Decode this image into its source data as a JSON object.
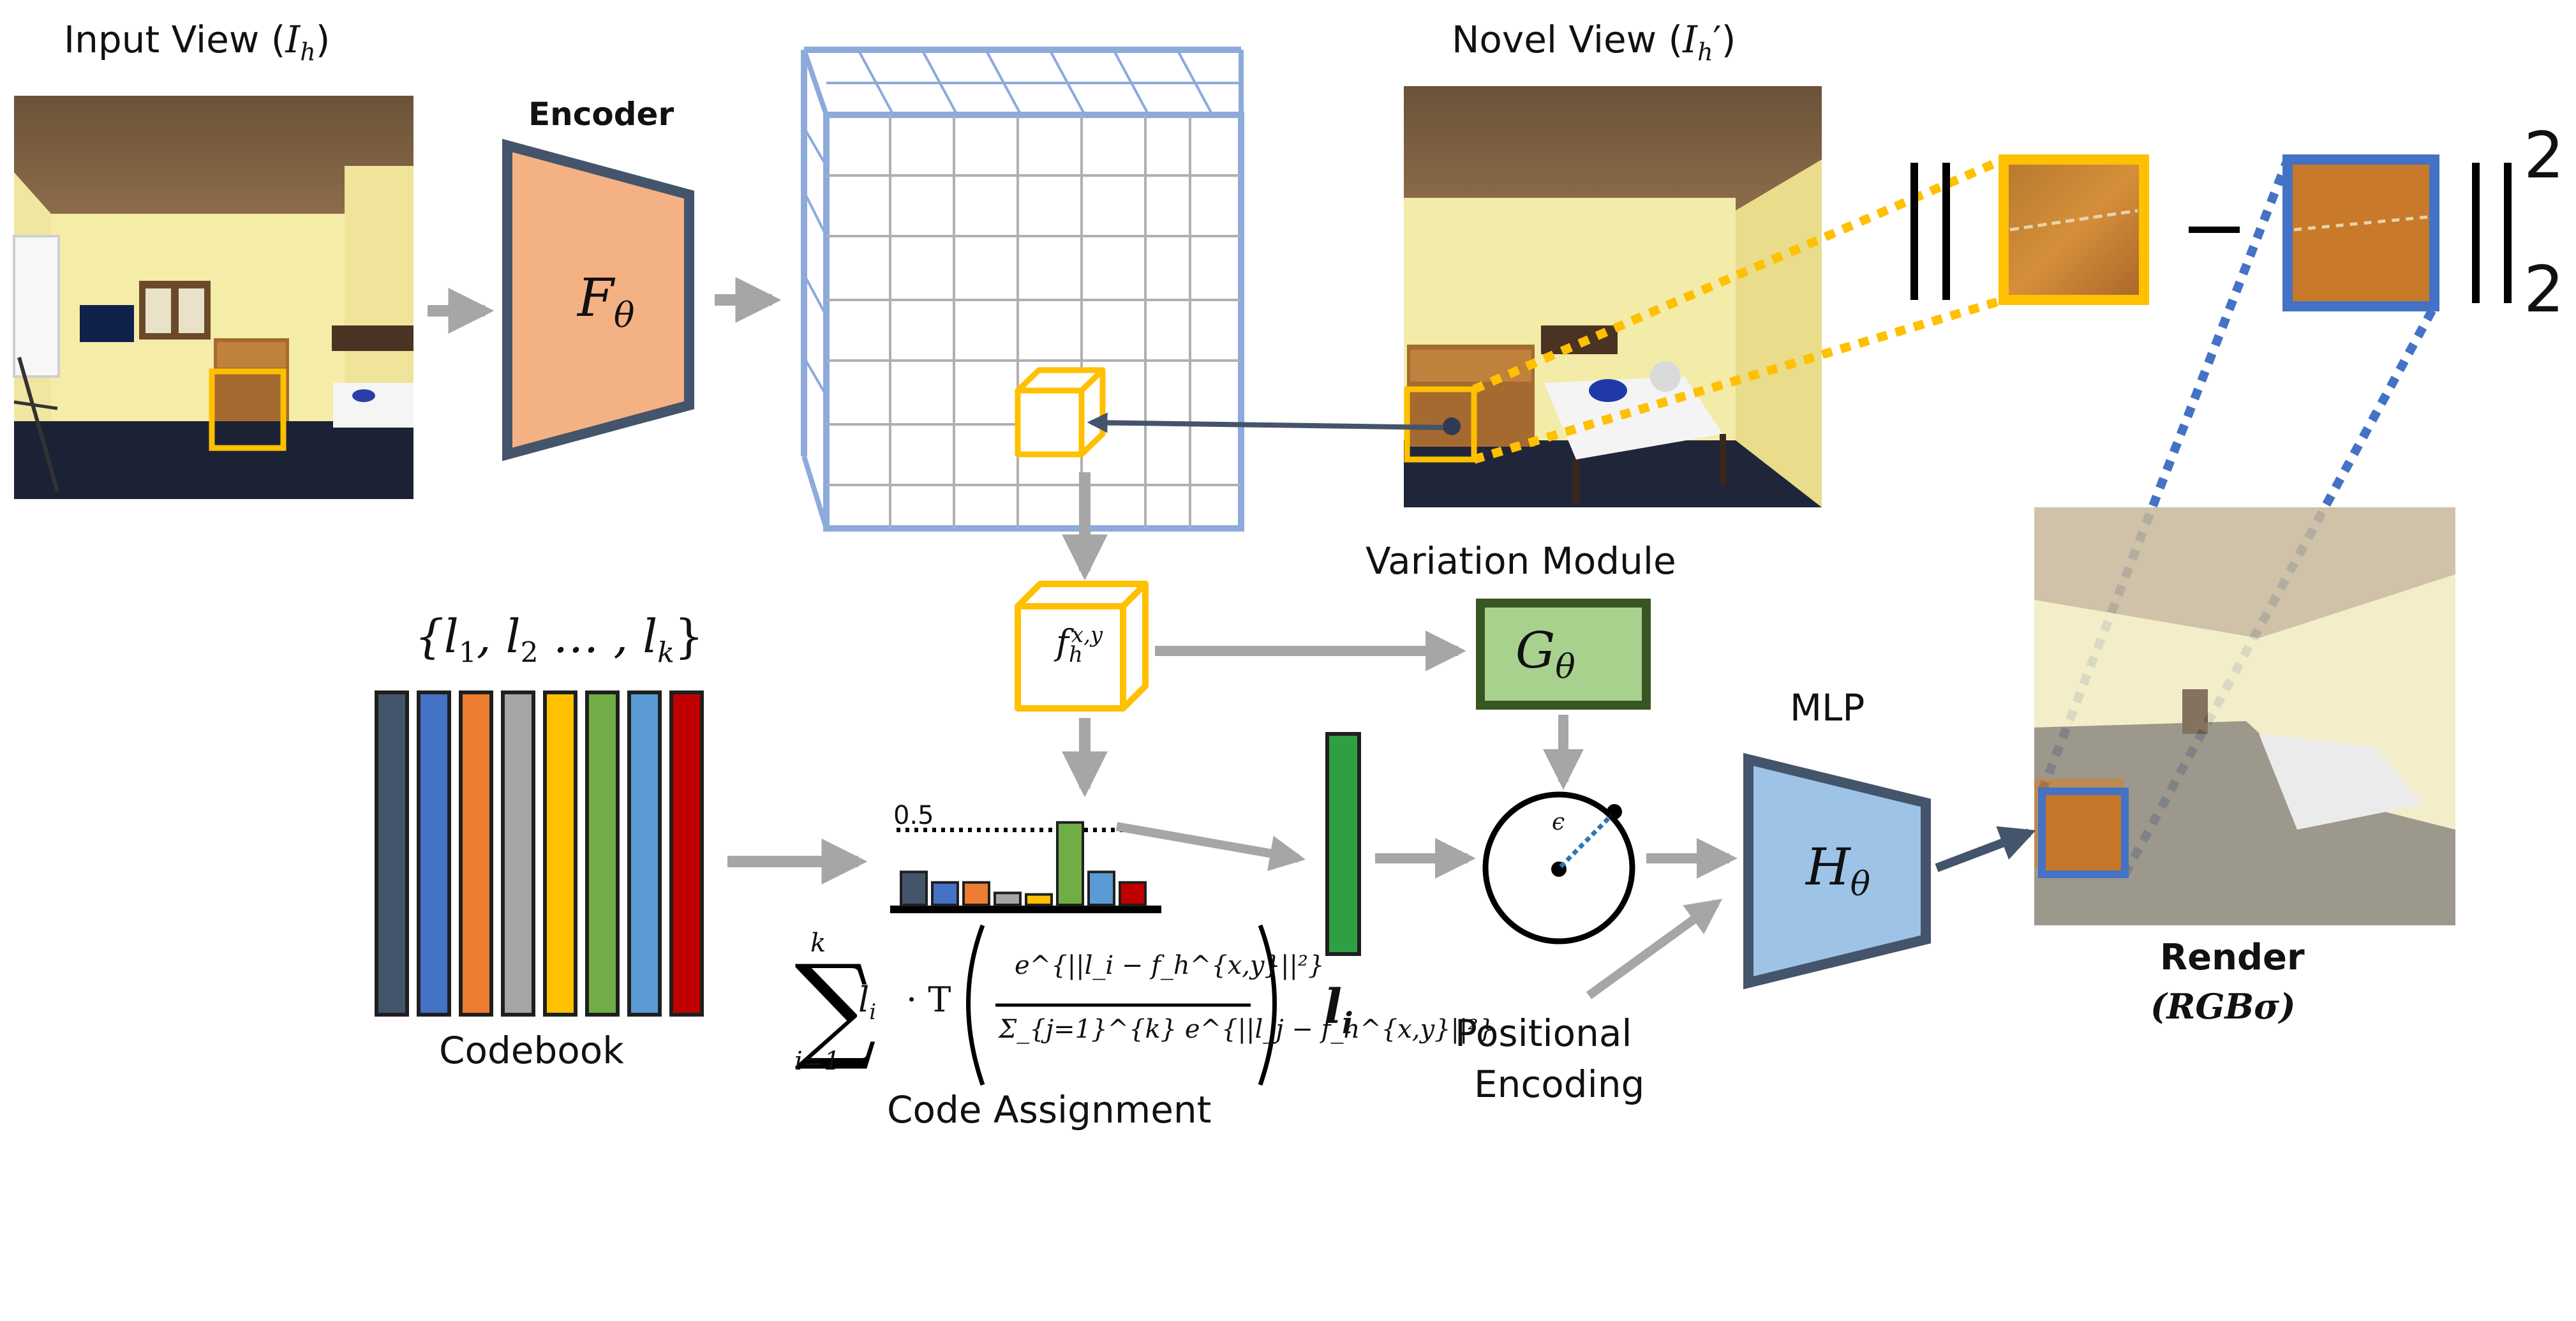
{
  "input_view": {
    "title": "Input View (",
    "math": "I",
    "sub": "h",
    "close": ")"
  },
  "novel_view": {
    "title": "Novel View (",
    "math": "I",
    "sub": "h",
    "prime": "′",
    "close": ")"
  },
  "encoder": {
    "label": "Encoder",
    "symbol": "F",
    "sub": "θ"
  },
  "variation_module": {
    "label": "Variation Module",
    "symbol": "G",
    "sub": "θ"
  },
  "mlp": {
    "label": "MLP",
    "symbol": "H",
    "sub": "θ"
  },
  "codebook": {
    "label": "Codebook",
    "set": "{l",
    "s1": "1",
    "mid1": ", l",
    "s2": "2",
    "mid2": " … , l",
    "sk": "k",
    "end": "}"
  },
  "code_assignment": {
    "label": "Code Assignment",
    "threshold": "0.5",
    "sum_top": "k",
    "sum_bottom": "i=1",
    "li": "l",
    "li_sub": "i",
    "dot_T": "· T",
    "numerator": "e^{||l_i − f_h^{x,y}||²}",
    "denominator": "Σ_{j=1}^{k} e^{||l_j − f_h^{x,y}||²}"
  },
  "feature": {
    "symbol": "f",
    "sub": "h",
    "sup": "x,y"
  },
  "latent": {
    "symbol": "l",
    "sub": "i"
  },
  "epsilon": "ϵ",
  "positional_encoding": {
    "line1": "Positional",
    "line2": "Encoding"
  },
  "render": {
    "label": "Render",
    "sub": "(RGBσ)"
  },
  "loss": {
    "power": "2",
    "norm_sub": "2",
    "minus": "−"
  },
  "chart_data": {
    "type": "bar",
    "values": [
      0.22,
      0.15,
      0.15,
      0.08,
      0.07,
      0.55,
      0.22,
      0.15
    ],
    "threshold": 0.5,
    "colors": [
      "#44546a",
      "#4472c4",
      "#ed7d31",
      "#a5a5a5",
      "#ffc000",
      "#70ad47",
      "#5b9bd5",
      "#c00000"
    ]
  },
  "colors": {
    "codebook_bars": [
      "#44546a",
      "#4472c4",
      "#ed7d31",
      "#a5a5a5",
      "#ffc000",
      "#70ad47",
      "#5b9bd5",
      "#c00000"
    ],
    "encoder_fill": "#f4b183",
    "variation_fill": "#a9d18e",
    "mlp_fill": "#9dc3e6",
    "grid": "#8eaadb",
    "highlight": "#ffc000",
    "render_box": "#4472c4",
    "arrow_gray": "#a6a6a6",
    "arrow_dark": "#44546a",
    "latent": "#2ea043"
  }
}
